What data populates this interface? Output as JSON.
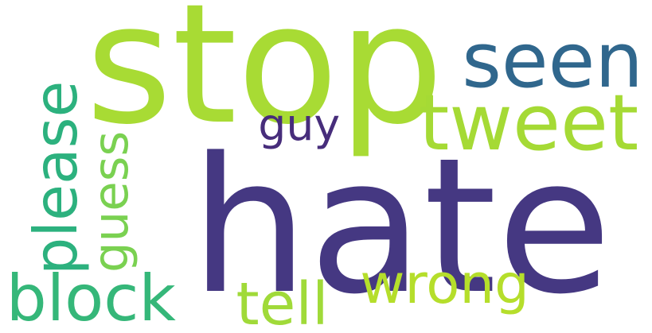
{
  "word_cloud": {
    "words": [
      {
        "key": "stop",
        "text": "stop",
        "color": "#a8db34"
      },
      {
        "key": "hate",
        "text": "hate",
        "color": "#453882"
      },
      {
        "key": "seen",
        "text": "seen",
        "color": "#30678d"
      },
      {
        "key": "tweet",
        "text": "tweet",
        "color": "#a5da35"
      },
      {
        "key": "please",
        "text": "please",
        "color": "#2cb17e"
      },
      {
        "key": "guy",
        "text": "guy",
        "color": "#472d7b"
      },
      {
        "key": "guess",
        "text": "guess",
        "color": "#7ad151"
      },
      {
        "key": "block",
        "text": "block",
        "color": "#35b779"
      },
      {
        "key": "tell",
        "text": "tell",
        "color": "#a0da39"
      },
      {
        "key": "wrong",
        "text": "wrong",
        "color": "#b5de2b"
      }
    ]
  }
}
